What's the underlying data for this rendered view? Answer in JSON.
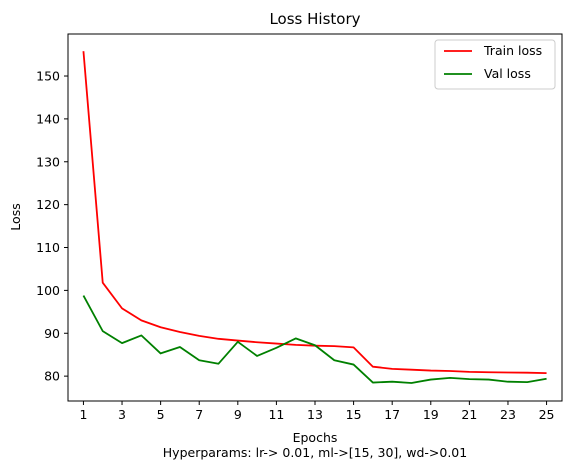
{
  "chart_data": {
    "type": "line",
    "title": "Loss History",
    "xlabel": "Epochs",
    "ylabel": "Loss",
    "caption": "Hyperparams: lr-> 0.01, ml->[15, 30], wd->0.01",
    "x": [
      1,
      2,
      3,
      4,
      5,
      6,
      7,
      8,
      9,
      10,
      11,
      12,
      13,
      14,
      15,
      16,
      17,
      18,
      19,
      20,
      21,
      22,
      23,
      24,
      25
    ],
    "xticks": [
      1,
      3,
      5,
      7,
      9,
      11,
      13,
      15,
      17,
      19,
      21,
      23,
      25
    ],
    "yticks": [
      80,
      90,
      100,
      110,
      120,
      130,
      140,
      150
    ],
    "xlim": [
      0.2,
      25.8
    ],
    "ylim": [
      74.2,
      159.8
    ],
    "grid": false,
    "legend_position": "top-right",
    "series": [
      {
        "name": "Train loss",
        "color": "#ff0000",
        "values": [
          155.8,
          101.8,
          95.8,
          93.0,
          91.4,
          90.3,
          89.4,
          88.7,
          88.3,
          87.9,
          87.6,
          87.3,
          87.1,
          87.0,
          86.7,
          82.2,
          81.7,
          81.5,
          81.3,
          81.2,
          81.0,
          80.9,
          80.85,
          80.8,
          80.7
        ]
      },
      {
        "name": "Val loss",
        "color": "#008000",
        "values": [
          98.8,
          90.5,
          87.7,
          89.5,
          85.3,
          86.8,
          83.7,
          82.9,
          88.0,
          84.7,
          86.6,
          88.8,
          87.2,
          83.7,
          82.7,
          78.5,
          78.7,
          78.4,
          79.2,
          79.6,
          79.3,
          79.2,
          78.7,
          78.6,
          79.4
        ]
      }
    ]
  }
}
